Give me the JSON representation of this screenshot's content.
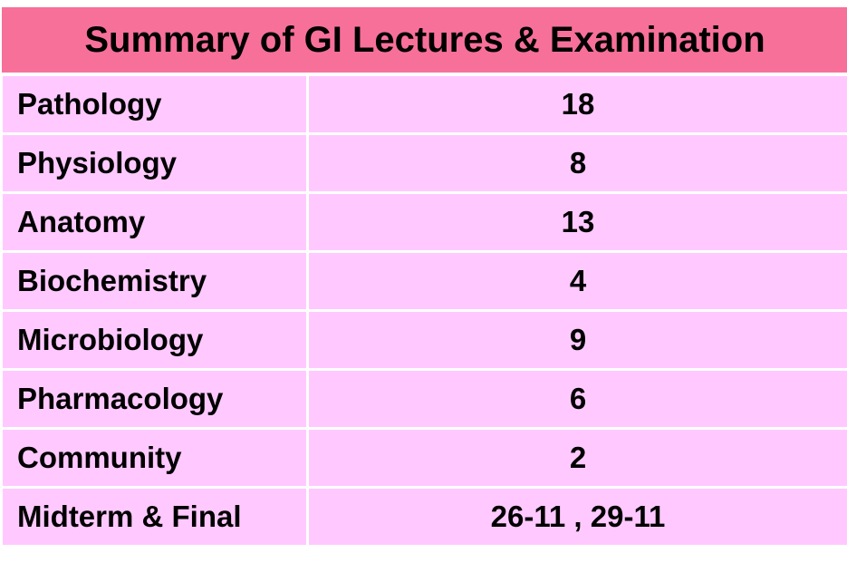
{
  "table": {
    "title": "Summary of GI Lectures & Examination",
    "rows": [
      [
        "Pathology",
        "18"
      ],
      [
        "Physiology",
        "8"
      ],
      [
        "Anatomy",
        "13"
      ],
      [
        "Biochemistry",
        "4"
      ],
      [
        "Microbiology",
        "9"
      ],
      [
        "Pharmacology",
        "6"
      ],
      [
        "Community",
        "2"
      ],
      [
        "Midterm & Final",
        "26-11 , 29-11"
      ]
    ]
  }
}
